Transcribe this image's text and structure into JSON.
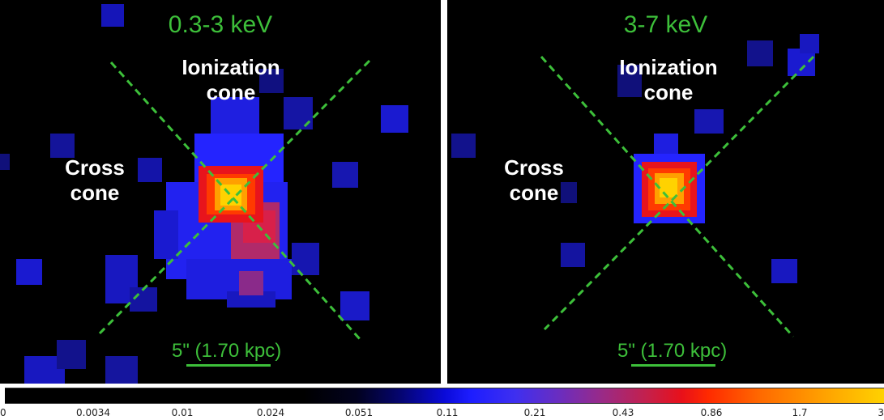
{
  "panels": [
    {
      "energy": "0.3-3 keV",
      "top_label_line1": "Ionization",
      "top_label_line2": "cone",
      "side_label_line1": "Cross",
      "side_label_line2": "cone",
      "scalebar": "5\" (1.70 kpc)"
    },
    {
      "energy": "3-7 keV",
      "top_label_line1": "Ionization",
      "top_label_line2": "cone",
      "side_label_line1": "Cross",
      "side_label_line2": "cone",
      "scalebar": "5\" (1.70 kpc)"
    }
  ],
  "colorbar": {
    "ticks": [
      "0",
      "0.0034",
      "0.01",
      "0.024",
      "0.051",
      "0.11",
      "0.21",
      "0.43",
      "0.86",
      "1.7",
      "3"
    ]
  },
  "colors": {
    "annotation_green": "#3dbf3a",
    "label_white": "#ffffff"
  }
}
